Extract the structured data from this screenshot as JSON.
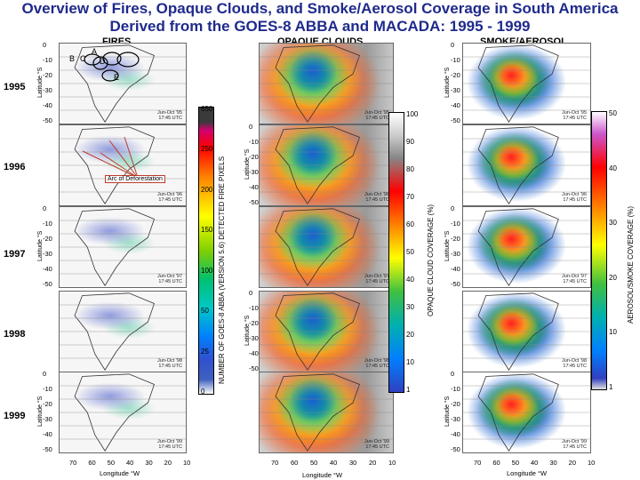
{
  "title": {
    "line1": "Overview of Fires, Opaque Clouds, and Smoke/Aerosol Coverage in South America",
    "line2": "Derived from the GOES-8 ABBA and MACADA:  1995 - 1999"
  },
  "columns": {
    "fires": "FIRES",
    "clouds": "OPAQUE CLOUDS",
    "smoke": "SMOKE/AEROSOL"
  },
  "years": [
    "1995",
    "1996",
    "1997",
    "1998",
    "1999"
  ],
  "latitude_ticks": [
    "0",
    "-10",
    "-20",
    "-30",
    "-40",
    "-50"
  ],
  "latitude_label": "Latitude °S",
  "longitude_ticks": [
    "70",
    "60",
    "50",
    "40",
    "30",
    "20",
    "10"
  ],
  "longitude_label": "Longitude °W",
  "annotations": {
    "regions": [
      "A",
      "B",
      "C",
      "D",
      "E"
    ],
    "arc": "Arc of Deforestation"
  },
  "stamps": {
    "fires": [
      "Jun-Oct '95\n17:45 UTC",
      "Jun-Oct '96\n17:45 UTC",
      "Jun-Oct '97\n17:45 UTC",
      "Jun-Oct '98\n17:45 UTC",
      "Jun-Oct '99\n17:45 UTC"
    ],
    "clouds": [
      "Jun-Oct '95\n17:45 UTC",
      "Jun-Oct '96\n17:45 UTC",
      "Jun-Oct '97\n17:45 UTC",
      "Jun-Oct '98\n17:45 UTC",
      "Jun-Oct '99\n17:45 UTC"
    ],
    "smoke": [
      "Jun-Oct '95\n17:45 UTC",
      "Jun-Oct '96\n17:45 UTC",
      "Jun-Oct '97\n17:45 UTC",
      "Jun-Oct '98\n17:45 UTC",
      "Jun-Oct '99\n17:45 UTC"
    ]
  },
  "colorbars": {
    "fires": {
      "label": "NUMBER OF GOES-8 ABBA (VERSION 5.6) DETECTED FIRE PIXELS",
      "ticks": [
        "650",
        "250",
        "200",
        "150",
        "100",
        "50",
        "25",
        "0"
      ]
    },
    "clouds": {
      "label": "OPAQUE CLOUD COVERAGE (%)",
      "ticks": [
        "100",
        "90",
        "80",
        "70",
        "60",
        "50",
        "40",
        "30",
        "20",
        "10",
        "1"
      ]
    },
    "smoke": {
      "label": "AEROSOL/SMOKE COVERAGE (%)",
      "ticks": [
        "50",
        "40",
        "30",
        "20",
        "10",
        "1"
      ]
    }
  },
  "colors": {
    "title": "#1f2a8c",
    "arc_label": "#c0392b"
  }
}
